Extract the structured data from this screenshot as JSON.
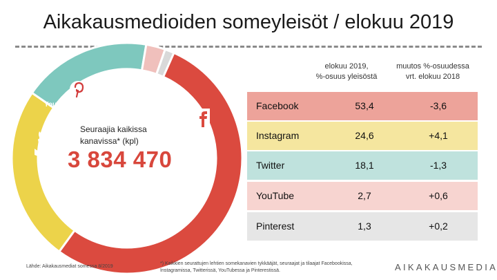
{
  "title": "Aikakausmedioiden someyleisöt / elokuu 2019",
  "center": {
    "label_line1": "Seuraajia kaikissa",
    "label_line2": "kanavissa* (kpl)",
    "value": "3 834 470"
  },
  "table": {
    "header_share_line1": "elokuu 2019,",
    "header_share_line2": "%-osuus yleisöstä",
    "header_change_line1": "muutos %-osuudessa",
    "header_change_line2": "vrt. elokuu 2018",
    "rows": [
      {
        "name": "Facebook",
        "share": "53,4",
        "change": "-3,6"
      },
      {
        "name": "Instagram",
        "share": "24,6",
        "change": "+4,1"
      },
      {
        "name": "Twitter",
        "share": "18,1",
        "change": "-1,3"
      },
      {
        "name": "YouTube",
        "share": "2,7",
        "change": "+0,6"
      },
      {
        "name": "Pinterest",
        "share": "1,3",
        "change": "+0,2"
      }
    ]
  },
  "icons": {
    "facebook": "facebook-icon",
    "instagram": "instagram-icon",
    "twitter": "twitter-icon",
    "youtube": "youtube-icon",
    "pinterest": "pinterest-icon",
    "youtube_text": "YouTube"
  },
  "colors": {
    "facebook": "#db4a3f",
    "instagram": "#ecd34a",
    "twitter": "#7ec8be",
    "youtube": "#f0c0bc",
    "pinterest": "#d9d9d9",
    "row_facebook": "#eda39a",
    "row_instagram": "#f5e69f",
    "row_twitter": "#bfe2dd",
    "row_youtube": "#f7d4d0",
    "row_pinterest": "#e6e6e6",
    "value_red": "#d8473c"
  },
  "chart_data": {
    "type": "pie",
    "title": "Aikakausmedioiden someyleisöt / elokuu 2019",
    "categories": [
      "Facebook",
      "Instagram",
      "Twitter",
      "YouTube",
      "Pinterest"
    ],
    "values": [
      53.4,
      24.6,
      18.1,
      2.7,
      1.3
    ],
    "change_vs_prev_year": [
      -3.6,
      4.1,
      -1.3,
      0.6,
      0.2
    ],
    "donut": true,
    "center_text": "3 834 470"
  },
  "footer": {
    "source": "Lähde: Aikakausmediat somessa 8/2019",
    "footnote": "*) Kaikkien seurattujen lehtien somekanavien tykkääjät, seuraajat ja tilaajat Facebookissa, Instagramissa, Twitterissä, YouTubessa ja Pinterestissä.",
    "brand": "AIKAKAUSMEDIA"
  }
}
